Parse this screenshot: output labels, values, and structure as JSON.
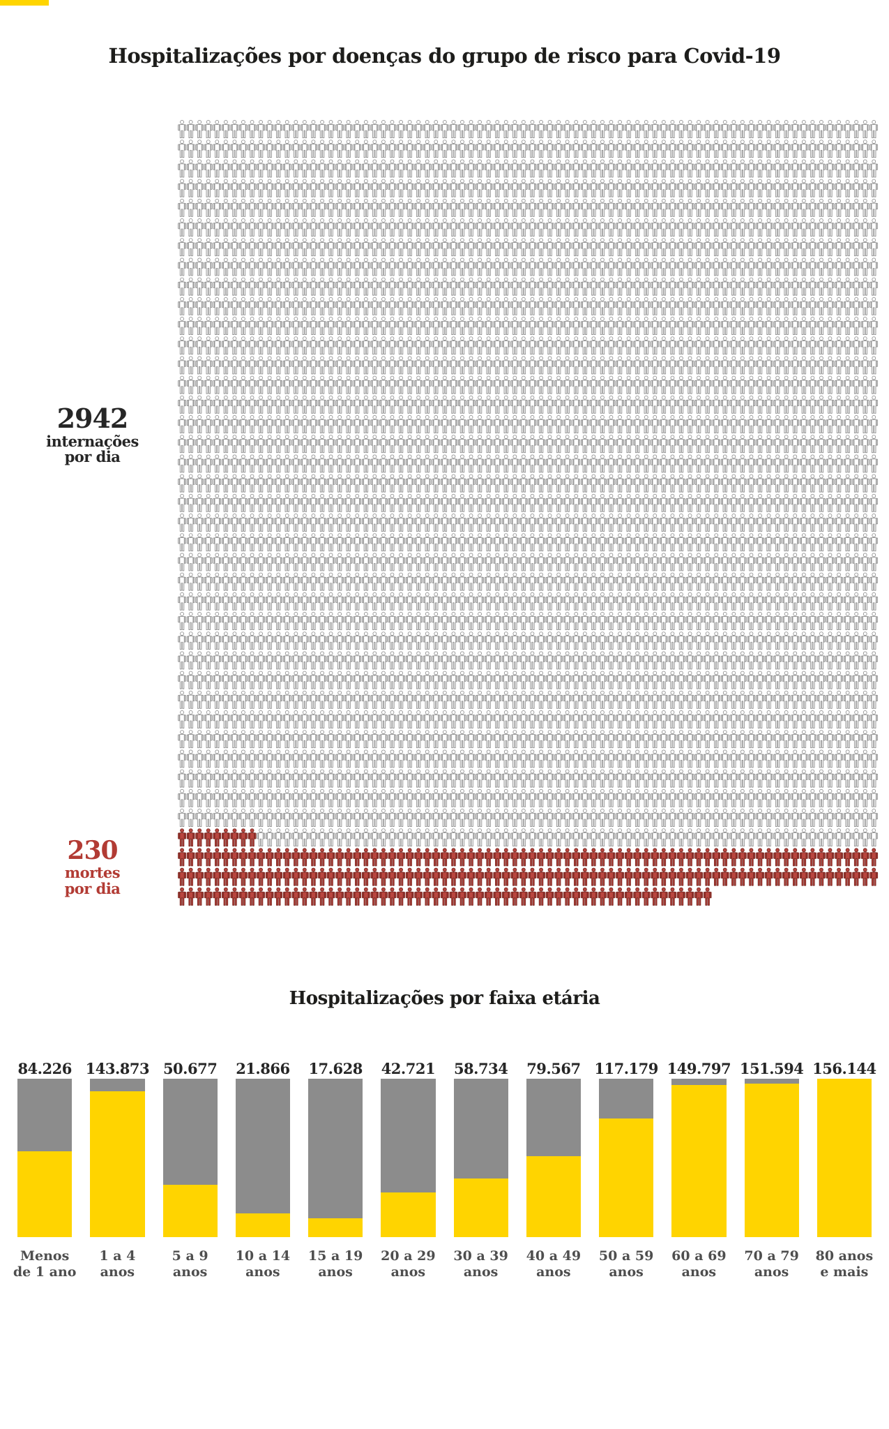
{
  "page": {
    "title": "Hospitalizações por doenças do grupo de risco para Covid-19"
  },
  "colors": {
    "accent_yellow": "#FFD500",
    "bar_yellow": "#FFD400",
    "bar_gray": "#8C8C8C",
    "death_red": "#B23B34",
    "icon_outline": "#8E8E8E",
    "icon_red_fill": "#B9463F",
    "icon_red_stroke": "#7C2822",
    "text_dark": "#1D1D1B",
    "age_label_gray": "#4E4E4E"
  },
  "pictogram": {
    "hospitalizations": {
      "value": "2942",
      "label_line1": "internações",
      "label_line2": "por dia"
    },
    "deaths": {
      "value": "230",
      "label_line1": "mortes",
      "label_line2": "por dia"
    }
  },
  "chart_data": [
    {
      "type": "pictogram",
      "title": "Hospitalizações por doenças do grupo de risco para Covid-19",
      "series": [
        {
          "name": "internações por dia",
          "value": 2942,
          "icon": "person-outline-icon"
        },
        {
          "name": "mortes por dia",
          "value": 230,
          "icon": "person-red-icon"
        }
      ],
      "layout": {
        "icons_per_row": 80,
        "outline_rows": 36,
        "deaths_first_row_icons": 9
      }
    },
    {
      "type": "bar",
      "stacked": true,
      "title": "Hospitalizações por faixa etária",
      "categories": [
        "Menos de 1 ano",
        "1 a 4 anos",
        "5 a 9 anos",
        "10 a 14 anos",
        "15 a 19 anos",
        "20 a 29 anos",
        "30 a 39 anos",
        "40 a 49 anos",
        "50 a 59 anos",
        "60 a 69 anos",
        "70 a 79 anos",
        "80 anos e mais"
      ],
      "category_lines": [
        [
          "Menos",
          "de 1 ano"
        ],
        [
          "1 a 4",
          "anos"
        ],
        [
          "5 a 9",
          "anos"
        ],
        [
          "10 a 14",
          "anos"
        ],
        [
          "15 a 19",
          "anos"
        ],
        [
          "20 a 29",
          "anos"
        ],
        [
          "30 a 39",
          "anos"
        ],
        [
          "40 a 49",
          "anos"
        ],
        [
          "50 a 59",
          "anos"
        ],
        [
          "60 a 69",
          "anos"
        ],
        [
          "70 a 79",
          "anos"
        ],
        [
          "80 anos",
          "e mais"
        ]
      ],
      "values": [
        84226,
        143873,
        50677,
        21866,
        17628,
        42721,
        58734,
        79567,
        117179,
        149797,
        151594,
        156144
      ],
      "value_labels": [
        "84.226",
        "143.873",
        "50.677",
        "21.866",
        "17.628",
        "42.721",
        "58.734",
        "79.567",
        "117.179",
        "149.797",
        "151.594",
        "156.144"
      ],
      "yellow_fraction": [
        0.54,
        0.92,
        0.33,
        0.15,
        0.12,
        0.28,
        0.37,
        0.51,
        0.75,
        0.96,
        0.97,
        1.0
      ],
      "bar_colors": {
        "top_segment": "#8C8C8C",
        "bottom_segment": "#FFD400"
      },
      "legend": "none",
      "grid": false
    }
  ]
}
